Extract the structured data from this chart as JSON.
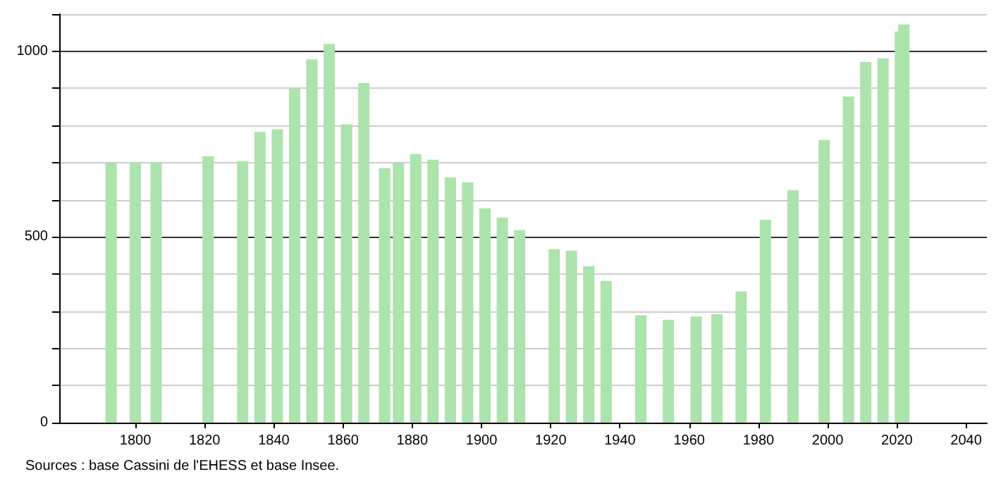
{
  "chart_data": {
    "type": "bar",
    "x": [
      1793,
      1800,
      1806,
      1821,
      1831,
      1836,
      1841,
      1846,
      1851,
      1856,
      1861,
      1866,
      1872,
      1876,
      1881,
      1886,
      1891,
      1896,
      1901,
      1906,
      1911,
      1921,
      1926,
      1931,
      1936,
      1946,
      1954,
      1962,
      1968,
      1975,
      1982,
      1990,
      1999,
      2006,
      2011,
      2016,
      2021,
      2022
    ],
    "series": [
      {
        "color": "#ade3ad",
        "values": [
          700,
          700,
          700,
          717,
          704,
          783,
          790,
          901,
          978,
          1020,
          803,
          914,
          685,
          698,
          723,
          708,
          660,
          647,
          577,
          552,
          518,
          467,
          463,
          421,
          381,
          289,
          277,
          286,
          292,
          353,
          546,
          626,
          761,
          878,
          971,
          981,
          1053,
          1072
        ]
      }
    ],
    "xlim": [
      1778,
      2046
    ],
    "xticks": [
      1800,
      1820,
      1840,
      1860,
      1880,
      1900,
      1920,
      1940,
      1960,
      1980,
      2000,
      2020,
      2040
    ],
    "ylim": [
      0,
      1100
    ],
    "yticks": [
      0,
      {
        "value": 100,
        "label": null
      },
      {
        "value": 200,
        "label": null
      },
      {
        "value": 300,
        "label": null
      },
      {
        "value": 400,
        "label": null
      },
      500,
      {
        "value": 600,
        "label": null
      },
      {
        "value": 700,
        "label": null
      },
      {
        "value": 800,
        "label": null
      },
      {
        "value": 900,
        "label": null
      },
      1000,
      {
        "value": 1100,
        "label": null
      }
    ],
    "grid": "y",
    "annotations": [
      "Sources : base Cassini de l'EHESS et base Insee."
    ]
  }
}
